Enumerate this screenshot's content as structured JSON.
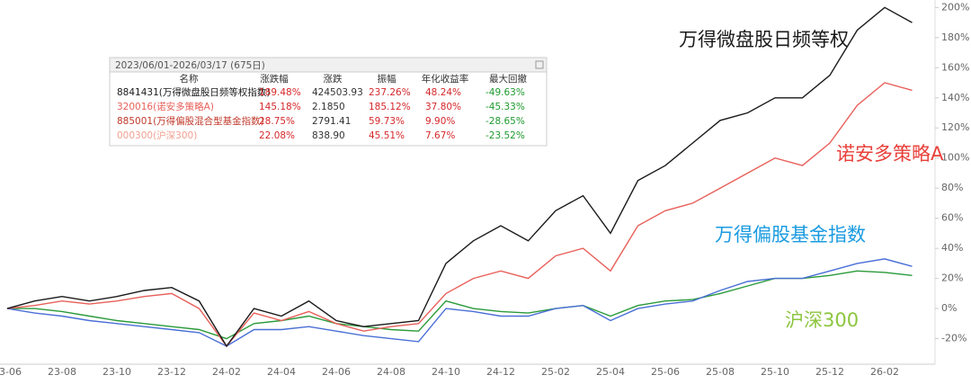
{
  "chart_data": {
    "type": "line",
    "categories": [
      "23-06",
      null,
      "23-08",
      null,
      "23-10",
      null,
      "23-12",
      null,
      "24-02",
      null,
      "24-04",
      null,
      "24-06",
      null,
      "24-08",
      null,
      "24-10",
      null,
      "24-12",
      null,
      "25-02",
      null,
      "25-04",
      null,
      "25-06",
      null,
      "25-08",
      null,
      "25-10",
      null,
      "25-12",
      null,
      "26-02",
      null
    ],
    "series": [
      {
        "name": "万得微盘股日频等权",
        "color": "#1a1a1a",
        "label_color": "#1a1a1a",
        "values": [
          0,
          5,
          8,
          5,
          8,
          12,
          14,
          5,
          -25,
          0,
          -5,
          5,
          -8,
          -12,
          -10,
          -8,
          30,
          45,
          55,
          45,
          65,
          75,
          50,
          85,
          95,
          110,
          125,
          130,
          140,
          140,
          155,
          185,
          200,
          190
        ]
      },
      {
        "name": "诺安多策略A",
        "color": "#e8605a",
        "label_color": "#e8403a",
        "values": [
          0,
          2,
          5,
          3,
          5,
          8,
          10,
          0,
          -25,
          -3,
          -8,
          -2,
          -10,
          -15,
          -12,
          -10,
          10,
          20,
          25,
          20,
          35,
          40,
          25,
          55,
          65,
          70,
          80,
          90,
          100,
          95,
          110,
          135,
          150,
          145
        ]
      },
      {
        "name": "万得偏股基金指数",
        "color": "#4a6fd6",
        "label_color": "#1a9be0",
        "values": [
          0,
          -3,
          -5,
          -8,
          -10,
          -12,
          -14,
          -16,
          -25,
          -14,
          -14,
          -12,
          -15,
          -18,
          -20,
          -22,
          0,
          -2,
          -5,
          -5,
          0,
          2,
          -8,
          0,
          3,
          5,
          12,
          18,
          20,
          20,
          25,
          30,
          33,
          28
        ]
      },
      {
        "name": "沪深300",
        "color": "#2a9a3a",
        "label_color": "#8cc63f",
        "values": [
          0,
          0,
          -2,
          -5,
          -8,
          -10,
          -12,
          -14,
          -20,
          -10,
          -8,
          -5,
          -10,
          -12,
          -14,
          -15,
          5,
          0,
          -2,
          -3,
          0,
          2,
          -5,
          2,
          5,
          6,
          10,
          15,
          20,
          20,
          22,
          25,
          24,
          22
        ]
      }
    ],
    "ylim": [
      -34,
      202
    ],
    "yticks": [
      {
        "value": -20,
        "label": "-20%"
      },
      {
        "value": 0,
        "label": "0%"
      },
      {
        "value": 20,
        "label": "20%"
      },
      {
        "value": 40,
        "label": "40%"
      },
      {
        "value": 60,
        "label": "60%"
      },
      {
        "value": 80,
        "label": "80%"
      },
      {
        "value": 100,
        "label": "100%"
      },
      {
        "value": 120,
        "label": "120%"
      },
      {
        "value": 140,
        "label": "140%"
      },
      {
        "value": 160,
        "label": "160%"
      },
      {
        "value": 180,
        "label": "180%"
      },
      {
        "value": 200,
        "label": "200%"
      }
    ],
    "table": {
      "title": "2023/06/01-2026/03/17 (675日)",
      "columns": [
        "名称",
        "涨跌幅",
        "涨跌",
        "振幅",
        "年化收益率",
        "最大回撤"
      ],
      "rows": [
        {
          "color": "#1a1a1a",
          "cells": [
            "8841431(万得微盘股日频等权指数)",
            "189.48%",
            "424503.93",
            "237.26%",
            "48.24%",
            "-49.63%"
          ]
        },
        {
          "color": "#e8605a",
          "cells": [
            "320016(诺安多策略A)",
            "145.18%",
            "2.1850",
            "185.12%",
            "37.80%",
            "-45.33%"
          ]
        },
        {
          "color": "#c0392b",
          "cells": [
            "885001(万得偏股混合型基金指数)",
            "28.75%",
            "2791.41",
            "59.73%",
            "9.90%",
            "-28.65%"
          ]
        },
        {
          "color": "#f0a090",
          "cells": [
            "000300(沪深300)",
            "22.08%",
            "838.90",
            "45.51%",
            "7.67%",
            "-23.52%"
          ]
        }
      ]
    }
  }
}
